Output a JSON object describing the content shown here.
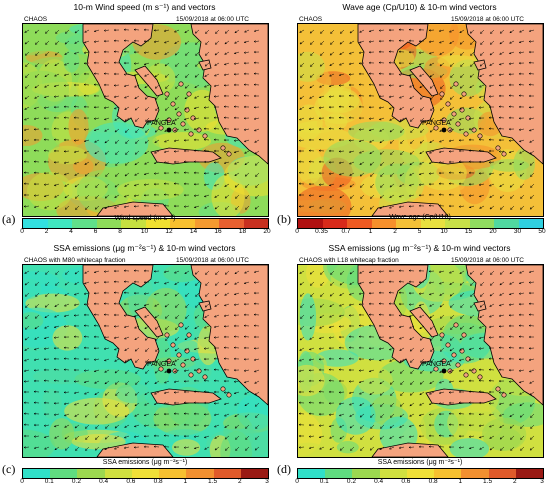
{
  "panels": [
    {
      "id": "a",
      "title": "10-m Wind speed (m s⁻¹) and vectors",
      "model": "CHAOS",
      "timestamp": "15/09/2018 at 06:00 UTC",
      "colorbar_label": "Wind speed (m s⁻¹)",
      "colorbar_ticks": [
        "0",
        "2",
        "4",
        "6",
        "8",
        "10",
        "12",
        "14",
        "16",
        "18",
        "20"
      ],
      "colorbar_colors": [
        "#32e0e0",
        "#40e6c0",
        "#60e08a",
        "#8edc5a",
        "#c6e040",
        "#f0e030",
        "#f8c030",
        "#f49a30",
        "#e86030",
        "#c83020"
      ],
      "panel_label": "(a)",
      "site_label": "PANGEA"
    },
    {
      "id": "b",
      "title": "Wave age (Cp/U10) & 10-m wind vectors",
      "model": "CHAOS",
      "timestamp": "15/09/2018 at 06:00 UTC",
      "colorbar_label": "Wave age (Cp/U10)",
      "colorbar_ticks": [
        "0",
        "0.35",
        "0.7",
        "1",
        "2",
        "5",
        "10",
        "15",
        "20",
        "30",
        "50"
      ],
      "colorbar_colors": [
        "#b01010",
        "#d82a1a",
        "#ee5a22",
        "#f6902c",
        "#f4c038",
        "#e8e040",
        "#c8e048",
        "#90dc60",
        "#50d8a0",
        "#30d0e0"
      ],
      "panel_label": "(b)",
      "site_label": "PANGEA"
    },
    {
      "id": "c",
      "title": "SSA emissions (μg m⁻²s⁻¹) & 10-m wind vectors",
      "model": "CHAOS with M80 whitecap fraction",
      "timestamp": "15/09/2018 at 06:00 UTC",
      "colorbar_label": "SSA emissions (μg m⁻²s⁻¹)",
      "colorbar_ticks": [
        "0",
        "0.1",
        "0.2",
        "0.4",
        "0.6",
        "0.8",
        "1",
        "1.5",
        "2",
        "3"
      ],
      "colorbar_colors": [
        "#30e0c8",
        "#60dc80",
        "#9cd850",
        "#d0e040",
        "#f0e038",
        "#f6c030",
        "#f29030",
        "#e05a2a",
        "#9a1a14"
      ],
      "panel_label": "(c)",
      "site_label": "PANGEA"
    },
    {
      "id": "d",
      "title": "SSA emissions (μg m⁻²s⁻¹) & 10-m wind vectors",
      "model": "CHAOS with L18 whitecap fraction",
      "timestamp": "15/09/2018 at 06:00 UTC",
      "colorbar_label": "SSA emissions (μg m⁻²s⁻¹)",
      "colorbar_ticks": [
        "0",
        "0.1",
        "0.2",
        "0.4",
        "0.6",
        "0.8",
        "1",
        "1.5",
        "2",
        "3"
      ],
      "colorbar_colors": [
        "#30e0c8",
        "#60dc80",
        "#9cd850",
        "#d0e040",
        "#f0e038",
        "#f6c030",
        "#f29030",
        "#e05a2a",
        "#9a1a14"
      ],
      "panel_label": "(d)",
      "site_label": "PANGEA"
    }
  ],
  "colors": {
    "land": "#f4a37e",
    "coast": "#000000",
    "vector": "#000000",
    "site_marker": "#000000"
  }
}
